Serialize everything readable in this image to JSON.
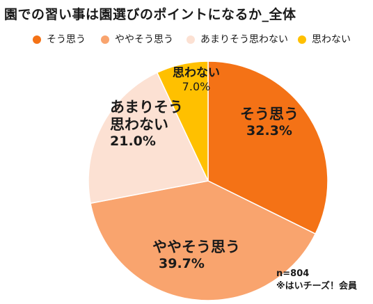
{
  "chart_data": {
    "type": "pie",
    "title": "園での習い事は園選びのポイントになるか_全体",
    "categories": [
      "そう思う",
      "ややそう思う",
      "あまりそう思わない",
      "思わない"
    ],
    "values": [
      32.3,
      39.7,
      21.0,
      7.0
    ],
    "value_labels": [
      "32.3%",
      "39.7%",
      "21.0%",
      "7.0%"
    ],
    "label_lines": [
      [
        "そう思う"
      ],
      [
        "ややそう思う"
      ],
      [
        "あまりそう",
        "思わない"
      ],
      [
        "思わない"
      ]
    ],
    "colors": [
      "#F47216",
      "#F9A46E",
      "#FCE1D3",
      "#FFC000"
    ],
    "legend_position": "top",
    "start_angle_deg": 0,
    "direction": "clockwise"
  },
  "footnote": {
    "sample_size": "n=804",
    "source": "※はいチーズ！会員"
  }
}
